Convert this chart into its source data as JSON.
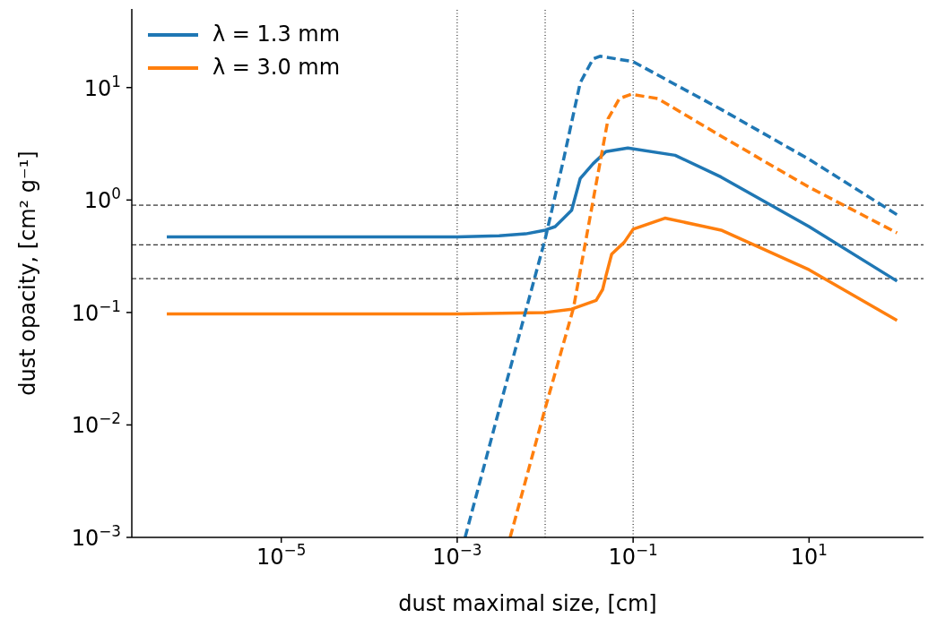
{
  "chart_data": {
    "type": "line",
    "xlabel": "dust maximal size, [cm]",
    "ylabel": "dust opacity, [cm² g⁻¹]",
    "log": "xy",
    "xlim": [
      2e-07,
      200
    ],
    "xticks": [
      {
        "value": 1e-05,
        "label": "10$^{−5}$"
      },
      {
        "value": 0.001,
        "label": "10$^{−3}$"
      },
      {
        "value": 0.1,
        "label": "10$^{−1}$"
      },
      {
        "value": 10,
        "label": "10$^{1}$"
      }
    ],
    "ylim": [
      0.001,
      50
    ],
    "yticks": [
      {
        "value": 0.001,
        "label": "10$^{−3}$"
      },
      {
        "value": 0.01,
        "label": "10$^{−2}$"
      },
      {
        "value": 0.1,
        "label": "10$^{−1}$"
      },
      {
        "value": 1,
        "label": "10$^{0}$"
      },
      {
        "value": 10,
        "label": "10$^{1}$"
      }
    ],
    "legend": "top left",
    "series": [
      {
        "name": "λ = 1.3 mm",
        "color": "#1f77b4",
        "line_style": "solid",
        "x": [
          5e-07,
          1e-05,
          0.001,
          0.003,
          0.006,
          0.01,
          0.013,
          0.016,
          0.02,
          0.025,
          0.035,
          0.049,
          0.087,
          0.3,
          1,
          10,
          100
        ],
        "values": [
          0.47,
          0.47,
          0.47,
          0.48,
          0.5,
          0.54,
          0.58,
          0.68,
          0.81,
          1.55,
          2.1,
          2.7,
          2.9,
          2.5,
          1.6,
          0.58,
          0.19
        ]
      },
      {
        "name": "λ = 3.0 mm",
        "color": "#ff7f0e",
        "line_style": "solid",
        "x": [
          5e-07,
          1e-05,
          0.001,
          0.01,
          0.02,
          0.038,
          0.045,
          0.049,
          0.057,
          0.079,
          0.1,
          0.23,
          1,
          10,
          100
        ],
        "values": [
          0.097,
          0.097,
          0.097,
          0.1,
          0.107,
          0.128,
          0.16,
          0.21,
          0.33,
          0.42,
          0.55,
          0.69,
          0.54,
          0.24,
          0.085
        ]
      },
      {
        "color": "#1f77b4",
        "line_style": "dashed",
        "x": [
          0.00123,
          0.00316,
          0.01,
          0.016,
          0.025,
          0.035,
          0.042,
          0.1,
          1,
          10,
          100
        ],
        "values": [
          0.001,
          0.016,
          0.45,
          2.2,
          11,
          18,
          19,
          17,
          6.4,
          2.3,
          0.74
        ]
      },
      {
        "color": "#ff7f0e",
        "line_style": "dashed",
        "x": [
          0.004,
          0.01,
          0.021,
          0.038,
          0.052,
          0.07,
          0.095,
          0.19,
          1,
          10,
          100
        ],
        "values": [
          0.001,
          0.014,
          0.11,
          1.4,
          5.3,
          8,
          8.7,
          8,
          3.7,
          1.3,
          0.51
        ]
      }
    ],
    "ref_lines": [
      {
        "axis": "x",
        "value": 0.001,
        "line_style": "dotted",
        "color": "#000000"
      },
      {
        "axis": "x",
        "value": 0.01,
        "line_style": "dotted",
        "color": "#000000"
      },
      {
        "axis": "x",
        "value": 0.1,
        "line_style": "dotted",
        "color": "#000000"
      },
      {
        "axis": "y",
        "value": 0.9,
        "line_style": "dashed",
        "color": "#000000"
      },
      {
        "axis": "y",
        "value": 0.4,
        "line_style": "dashed",
        "color": "#000000"
      },
      {
        "axis": "y",
        "value": 0.2,
        "line_style": "dashed",
        "color": "#000000"
      }
    ]
  }
}
